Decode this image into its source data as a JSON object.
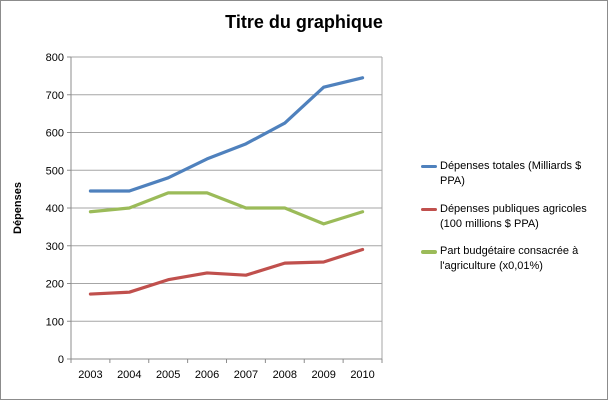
{
  "chart_data": {
    "type": "line",
    "title": "Titre du graphique",
    "ylabel": "Dépenses",
    "xlabel": "",
    "categories": [
      "2003",
      "2004",
      "2005",
      "2006",
      "2007",
      "2008",
      "2009",
      "2010"
    ],
    "series": [
      {
        "name": "Dépenses totales (Milliards $ PPA)",
        "color": "#4F81BD",
        "values": [
          445,
          445,
          480,
          530,
          570,
          625,
          720,
          745
        ]
      },
      {
        "name": "Dépenses publiques agricoles (100 millions $ PPA)",
        "color": "#C0504D",
        "values": [
          172,
          177,
          210,
          228,
          222,
          254,
          257,
          290
        ]
      },
      {
        "name": "Part budgétaire consacrée à l'agriculture (x0,01%)",
        "color": "#9BBB59",
        "values": [
          390,
          400,
          440,
          440,
          400,
          400,
          358,
          390
        ]
      }
    ],
    "ylim": [
      0,
      800
    ],
    "yticks": [
      0,
      100,
      200,
      300,
      400,
      500,
      600,
      700,
      800
    ],
    "grid": true,
    "legend_position": "right",
    "colors": {
      "gridline": "#A6A6A6",
      "axis": "#8C8C8C",
      "chart_border": "#8C8C8C",
      "background": "#FFFFFF",
      "text": "#000000"
    }
  }
}
